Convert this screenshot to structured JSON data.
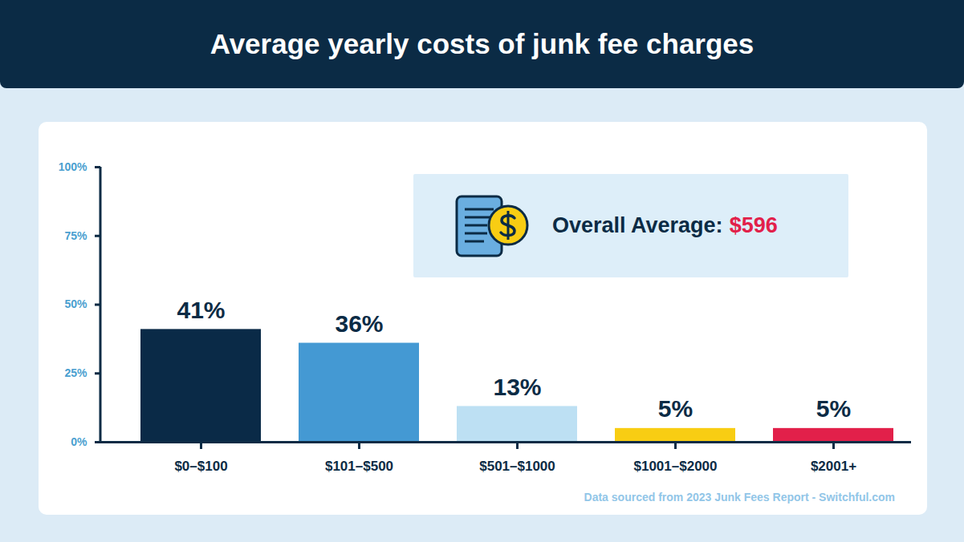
{
  "chart_data": {
    "type": "bar",
    "title": "Average yearly costs of junk fee charges",
    "categories": [
      "$0–$100",
      "$101–$500",
      "$501–$1000",
      "$1001–$2000",
      "$2001+"
    ],
    "values": [
      41,
      36,
      13,
      5,
      5
    ],
    "value_labels": [
      "41%",
      "36%",
      "13%",
      "5%",
      "5%"
    ],
    "colors": [
      "#0a2a47",
      "#4499d3",
      "#bde0f3",
      "#f8cd13",
      "#e2204a"
    ],
    "ylim": [
      0,
      100
    ],
    "yticks": [
      {
        "value": 0,
        "label": "0%"
      },
      {
        "value": 25,
        "label": "25%"
      },
      {
        "value": 50,
        "label": "50%"
      },
      {
        "value": 75,
        "label": "75%"
      },
      {
        "value": 100,
        "label": "100%"
      }
    ],
    "grid": false,
    "data_labels": true,
    "annotation": {
      "label": "Overall Average:",
      "value": "$596"
    },
    "source": "Data sourced from 2023 Junk Fees Report - Switchful.com"
  }
}
